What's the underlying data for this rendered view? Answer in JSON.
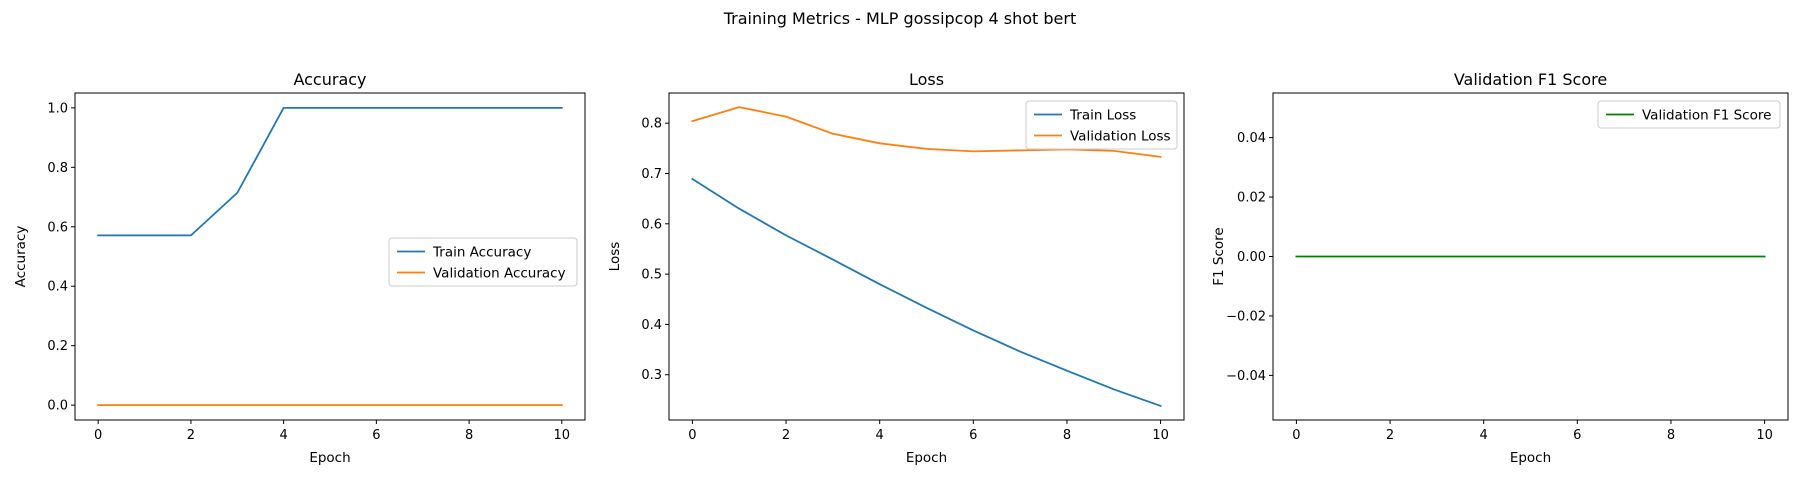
{
  "figure": {
    "suptitle": "Training Metrics - MLP gossipcop 4 shot bert"
  },
  "chart_data": [
    {
      "type": "line",
      "title": "Accuracy",
      "xlabel": "Epoch",
      "ylabel": "Accuracy",
      "xlim": [
        -0.5,
        10.5
      ],
      "ylim": [
        -0.05,
        1.05
      ],
      "xticks": [
        0,
        2,
        4,
        6,
        8,
        10
      ],
      "yticks": [
        0.0,
        0.2,
        0.4,
        0.6,
        0.8,
        1.0
      ],
      "ytick_labels": [
        "0.0",
        "0.2",
        "0.4",
        "0.6",
        "0.8",
        "1.0"
      ],
      "legend_loc": "center-right",
      "x": [
        0,
        1,
        2,
        3,
        4,
        5,
        6,
        7,
        8,
        9,
        10
      ],
      "series": [
        {
          "name": "Train Accuracy",
          "color": "#1f77b4",
          "values": [
            0.571,
            0.571,
            0.571,
            0.714,
            1.0,
            1.0,
            1.0,
            1.0,
            1.0,
            1.0,
            1.0
          ]
        },
        {
          "name": "Validation Accuracy",
          "color": "#ff7f0e",
          "values": [
            0,
            0,
            0,
            0,
            0,
            0,
            0,
            0,
            0,
            0,
            0
          ]
        }
      ]
    },
    {
      "type": "line",
      "title": "Loss",
      "xlabel": "Epoch",
      "ylabel": "Loss",
      "xlim": [
        -0.5,
        10.5
      ],
      "ylim": [
        0.21,
        0.86
      ],
      "xticks": [
        0,
        2,
        4,
        6,
        8,
        10
      ],
      "yticks": [
        0.3,
        0.4,
        0.5,
        0.6,
        0.7,
        0.8
      ],
      "ytick_labels": [
        "0.3",
        "0.4",
        "0.5",
        "0.6",
        "0.7",
        "0.8"
      ],
      "legend_loc": "top-right",
      "x": [
        0,
        1,
        2,
        3,
        4,
        5,
        6,
        7,
        8,
        9,
        10
      ],
      "series": [
        {
          "name": "Train Loss",
          "color": "#1f77b4",
          "values": [
            0.689,
            0.63,
            0.577,
            0.529,
            0.48,
            0.433,
            0.388,
            0.346,
            0.308,
            0.271,
            0.238
          ]
        },
        {
          "name": "Validation Loss",
          "color": "#ff7f0e",
          "values": [
            0.804,
            0.832,
            0.813,
            0.779,
            0.76,
            0.749,
            0.744,
            0.746,
            0.748,
            0.745,
            0.733
          ]
        }
      ]
    },
    {
      "type": "line",
      "title": "Validation F1 Score",
      "xlabel": "Epoch",
      "ylabel": "F1 Score",
      "xlim": [
        -0.5,
        10.5
      ],
      "ylim": [
        -0.055,
        0.055
      ],
      "xticks": [
        0,
        2,
        4,
        6,
        8,
        10
      ],
      "yticks": [
        -0.04,
        -0.02,
        0.0,
        0.02,
        0.04
      ],
      "ytick_labels": [
        "−0.04",
        "−0.02",
        "0.00",
        "0.02",
        "0.04"
      ],
      "legend_loc": "top-right",
      "x": [
        0,
        1,
        2,
        3,
        4,
        5,
        6,
        7,
        8,
        9,
        10
      ],
      "series": [
        {
          "name": "Validation F1 Score",
          "color": "#008000",
          "values": [
            0,
            0,
            0,
            0,
            0,
            0,
            0,
            0,
            0,
            0,
            0
          ]
        }
      ]
    }
  ]
}
